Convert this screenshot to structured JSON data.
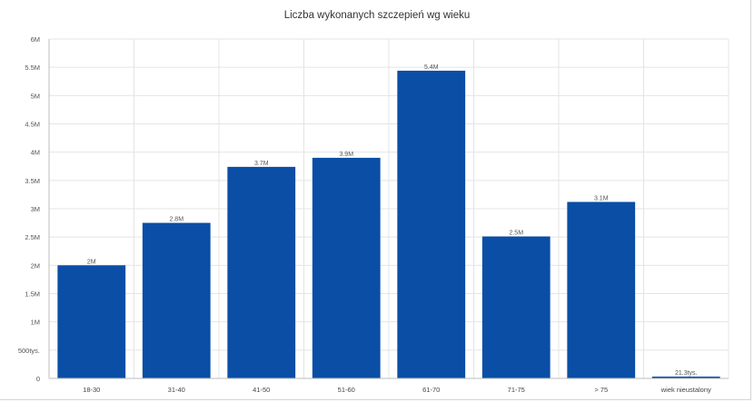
{
  "chart_data": {
    "type": "bar",
    "title": "Liczba wykonanych szczepień wg wieku",
    "xlabel": "",
    "ylabel": "",
    "categories": [
      "18-30",
      "31-40",
      "41-50",
      "51-60",
      "61-70",
      "71-75",
      "> 75",
      "wiek nieustalony"
    ],
    "values": [
      2000000,
      2750000,
      3740000,
      3900000,
      5440000,
      2510000,
      3120000,
      21300
    ],
    "data_labels": [
      "2M",
      "2.8M",
      "3.7M",
      "3.9M",
      "5.4M",
      "2.5M",
      "3.1M",
      "21.3tys."
    ],
    "ylim": [
      0,
      6000000
    ],
    "yticks": [
      0,
      500000,
      1000000,
      1500000,
      2000000,
      2500000,
      3000000,
      3500000,
      4000000,
      4500000,
      5000000,
      5500000,
      6000000
    ],
    "ytick_labels": [
      "0",
      "500tys.",
      "1M",
      "1.5M",
      "2M",
      "2.5M",
      "3M",
      "3.5M",
      "4M",
      "4.5M",
      "5M",
      "5.5M",
      "6M"
    ],
    "grid": true,
    "legend": "none",
    "bar_color": "#0a4ea6"
  }
}
